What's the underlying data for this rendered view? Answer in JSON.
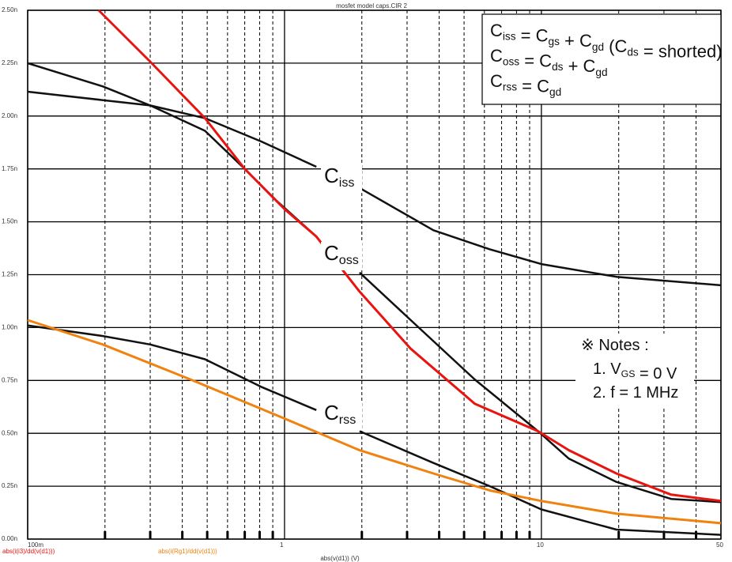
{
  "chart_data": {
    "type": "line",
    "title": "mosfet model caps.CIR 2",
    "xlabel": "abs(v(d1)) (V)",
    "xscale": "log",
    "xlim": [
      0.1,
      50
    ],
    "ylim": [
      0,
      2.5
    ],
    "xticks": [
      {
        "value": 0.1,
        "label": "100m"
      },
      1,
      10,
      50
    ],
    "xminorticks": [
      0.2,
      0.3,
      0.4,
      0.5,
      0.6,
      0.7,
      0.8,
      0.9,
      2,
      3,
      4,
      5,
      6,
      7,
      8,
      9,
      20,
      30,
      40
    ],
    "yticks": [
      {
        "value": 0,
        "label": "0.00n"
      },
      {
        "value": 0.25,
        "label": "0.25n"
      },
      {
        "value": 0.5,
        "label": "0.50n"
      },
      {
        "value": 0.75,
        "label": "0.75n"
      },
      {
        "value": 1,
        "label": "1.00n"
      },
      {
        "value": 1.25,
        "label": "1.25n"
      },
      {
        "value": 1.5,
        "label": "1.50n"
      },
      {
        "value": 1.75,
        "label": "1.75n"
      },
      {
        "value": 2,
        "label": "2.00n"
      },
      {
        "value": 2.25,
        "label": "2.25n"
      },
      {
        "value": 2.5,
        "label": "2.50n"
      }
    ],
    "grid": true,
    "series": [
      {
        "name": "abs(i(i3)/dd(v(d1)))",
        "color": "#e8140f",
        "x": [
          0.189,
          0.3,
          0.49,
          0.7,
          1.0,
          1.33,
          1.96,
          3.1,
          5.5,
          9.7,
          12.8,
          19.6,
          32,
          50
        ],
        "values": [
          2.5,
          2.257,
          1.99,
          1.75,
          1.56,
          1.43,
          1.17,
          0.9,
          0.64,
          0.51,
          0.42,
          0.31,
          0.21,
          0.18
        ]
      },
      {
        "name": "abs(i(Rg1)/dd(v(d1)))",
        "color": "#f0820f",
        "x": [
          0.1,
          0.196,
          0.43,
          1.0,
          1.96,
          3.8,
          6.3,
          10,
          19.6,
          50
        ],
        "values": [
          1.035,
          0.92,
          0.755,
          0.57,
          0.42,
          0.31,
          0.23,
          0.18,
          0.12,
          0.075
        ]
      },
      {
        "color": "#111111",
        "x": [
          0.1,
          0.3,
          0.49,
          0.81,
          1.33,
          null,
          1.96,
          3.8,
          6.3,
          10,
          19.6,
          50
        ],
        "values": [
          2.115,
          2.05,
          1.99,
          1.88,
          1.76,
          null,
          1.66,
          1.46,
          1.37,
          1.3,
          1.24,
          1.2
        ]
      },
      {
        "color": "#111111",
        "x": [
          0.1,
          0.196,
          0.3,
          0.49,
          0.7,
          0.93,
          1.33,
          null,
          1.96,
          3.1,
          5.5,
          9.7,
          12.8,
          19.6,
          32,
          50
        ],
        "values": [
          2.25,
          2.14,
          2.05,
          1.93,
          1.75,
          1.6,
          1.43,
          null,
          1.26,
          1.035,
          0.755,
          0.51,
          0.38,
          0.27,
          0.19,
          0.175
        ]
      },
      {
        "color": "#111111",
        "x": [
          0.1,
          0.196,
          0.3,
          0.49,
          0.81,
          1.33,
          null,
          1.96,
          3.8,
          6.3,
          10,
          19.6,
          50
        ],
        "values": [
          1.01,
          0.96,
          0.92,
          0.85,
          0.72,
          0.61,
          null,
          0.51,
          0.36,
          0.25,
          0.14,
          0.045,
          0.02
        ]
      }
    ],
    "annotations": [
      [
        {
          "text": "C",
          "sub": "iss"
        }
      ],
      [
        {
          "text": "C",
          "sub": "oss"
        }
      ],
      [
        {
          "text": "C",
          "sub": "rss"
        }
      ]
    ],
    "formula_box": [
      [
        {
          "text": "C",
          "sub": "iss"
        },
        {
          "text": " = C",
          "sub": "gs"
        },
        {
          "text": " + C",
          "sub": "gd"
        },
        {
          "text": " (C",
          "sub": "ds"
        },
        {
          "text": " = shorted)"
        }
      ],
      [
        {
          "text": "C",
          "sub": "oss"
        },
        {
          "text": " = C",
          "sub": "ds"
        },
        {
          "text": " + C",
          "sub": "gd"
        }
      ],
      [
        {
          "text": "C",
          "sub": "rss"
        },
        {
          "text": " = C",
          "sub": "gd"
        }
      ]
    ],
    "notes": [
      [
        {
          "text": "※ Notes :"
        }
      ],
      [
        {
          "text": "1. V",
          "sub": "GS"
        },
        {
          "text": " = 0 V"
        }
      ],
      [
        {
          "text": "2. f = 1 MHz"
        }
      ]
    ]
  }
}
